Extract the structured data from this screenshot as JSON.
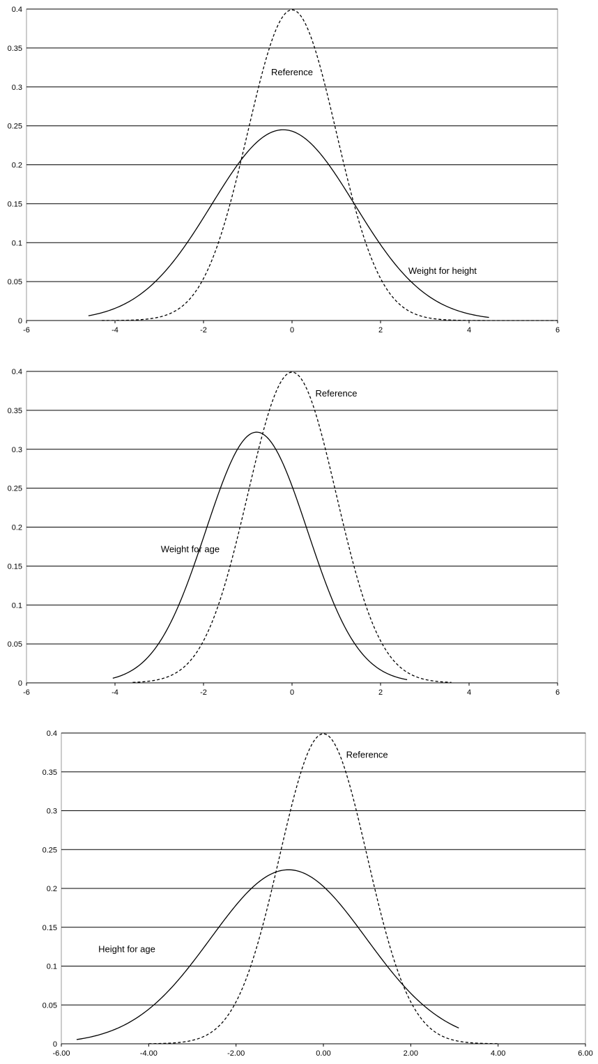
{
  "chart_data": [
    {
      "type": "line",
      "xlim": [
        -6,
        6
      ],
      "ylim": [
        0,
        0.4
      ],
      "xticks": [
        "-6",
        "-4",
        "-2",
        "0",
        "2",
        "4",
        "6"
      ],
      "yticks": [
        "0",
        "0.05",
        "0.1",
        "0.15",
        "0.2",
        "0.25",
        "0.3",
        "0.35",
        "0.4"
      ],
      "grid": true,
      "series": [
        {
          "name": "Reference",
          "style": "dashed",
          "mean": 0,
          "sd": 1,
          "peak": 0.399,
          "xrange": [
            -4.3,
            6
          ]
        },
        {
          "name": "Weight for height",
          "style": "solid",
          "mean": -0.2,
          "sd": 1.62,
          "peak": 0.245,
          "xrange": [
            -4.6,
            4.45
          ]
        }
      ],
      "annotations": [
        {
          "text": "Reference",
          "x": 0.0,
          "y": 0.315
        },
        {
          "text": "Weight for height",
          "x": 3.4,
          "y": 0.06
        }
      ]
    },
    {
      "type": "line",
      "xlim": [
        -6,
        6
      ],
      "ylim": [
        0,
        0.4
      ],
      "xticks": [
        "-6",
        "-4",
        "-2",
        "0",
        "2",
        "4",
        "6"
      ],
      "yticks": [
        "0",
        "0.05",
        "0.1",
        "0.15",
        "0.2",
        "0.25",
        "0.3",
        "0.35",
        "0.4"
      ],
      "grid": true,
      "series": [
        {
          "name": "Reference",
          "style": "dashed",
          "mean": 0,
          "sd": 1,
          "peak": 0.399,
          "xrange": [
            -3.6,
            3.6
          ]
        },
        {
          "name": "Weight for age",
          "style": "solid",
          "mean": -0.8,
          "sd": 1.15,
          "peak": 0.322,
          "xrange": [
            -4.05,
            2.6
          ]
        }
      ],
      "annotations": [
        {
          "text": "Reference",
          "x": 1.0,
          "y": 0.368
        },
        {
          "text": "Weight for age",
          "x": -2.3,
          "y": 0.168
        }
      ]
    },
    {
      "type": "line",
      "xlim": [
        -6,
        6
      ],
      "ylim": [
        0,
        0.4
      ],
      "xticks": [
        "-6.00",
        "-4.00",
        "-2.00",
        "0.00",
        "2.00",
        "4.00",
        "6.00"
      ],
      "yticks": [
        "0",
        "0.05",
        "0.1",
        "0.15",
        "0.2",
        "0.25",
        "0.3",
        "0.35",
        "0.4"
      ],
      "grid": true,
      "series": [
        {
          "name": "Reference",
          "style": "dashed",
          "mean": 0,
          "sd": 1,
          "peak": 0.399,
          "xrange": [
            -4.0,
            4.0
          ]
        },
        {
          "name": "Height for age",
          "style": "solid",
          "mean": -0.8,
          "sd": 1.78,
          "peak": 0.224,
          "xrange": [
            -5.65,
            3.1
          ]
        }
      ],
      "annotations": [
        {
          "text": "Reference",
          "x": 1.0,
          "y": 0.368
        },
        {
          "text": "Height for age",
          "x": -4.5,
          "y": 0.118
        }
      ]
    }
  ]
}
